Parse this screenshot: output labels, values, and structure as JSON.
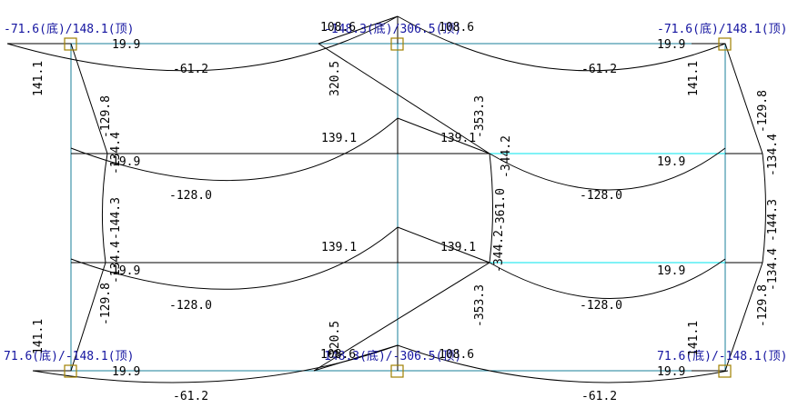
{
  "colors": {
    "background": "#ffffff",
    "frame_lines": "#1a7f9a",
    "beam_lines": "#00e5ee",
    "moment_curves": "#000000",
    "joint_markers": "#a08000",
    "label_text": "#000000",
    "column_axial_text": "#1414a0"
  },
  "column_labels": {
    "top_left": "-71.6(底)/148.1(顶)",
    "top_mid": "-148.3(底)/306.5(顶)",
    "top_right": "-71.6(底)/148.1(顶)",
    "bot_left": "71.6(底)/-148.1(顶)",
    "bot_mid": "148.3(底)/-306.5(顶)",
    "bot_right": "71.6(底)/-148.1(顶)"
  },
  "overlap_labels": {
    "top_mid_a": "108.6",
    "top_mid_b": "108.6",
    "bot_mid_a": "108.6",
    "bot_mid_b": "108.6"
  },
  "beam_labels": {
    "top_left_end": "19.9",
    "top_left_mid": "-61.2",
    "top_right_end": "19.9",
    "top_right_mid": "-61.2",
    "row2_left_end": "19.9",
    "row2_left_mid": "-128.0",
    "row2_left_peak": "139.1",
    "row2_right_peak": "139.1",
    "row2_right_end": "19.9",
    "row2_right_mid": "-128.0",
    "row3_left_end": "19.9",
    "row3_left_mid": "-128.0",
    "row3_left_peak": "139.1",
    "row3_right_peak": "139.1",
    "row3_right_end": "19.9",
    "row3_right_mid": "-128.0",
    "bot_left_end": "19.9",
    "bot_left_mid": "-61.2",
    "bot_right_end": "19.9",
    "bot_right_mid": "-61.2"
  },
  "column_moment_labels": {
    "left_top_141": "141.1",
    "left_top_129": "-129.8",
    "left_upper_134": "-134.4",
    "left_mid_144": "-144.3",
    "left_lower_134": "-134.4",
    "left_bot_129": "-129.8",
    "left_bot_141": "141.1",
    "mid_top_320": "320.5",
    "mid_upper_353": "-353.3",
    "mid_upper_344": "-344.2",
    "mid_center_361": "-361.0",
    "mid_lower_344": "-344.2",
    "mid_lower_353": "-353.3",
    "mid_bot_320": "320.5",
    "right_top_141": "141.1",
    "right_top_129": "-129.8",
    "right_upper_134": "-134.4",
    "right_mid_144": "-144.3",
    "right_lower_134": "-134.4",
    "right_bot_129": "-129.8",
    "right_bot_141": "141.1"
  }
}
